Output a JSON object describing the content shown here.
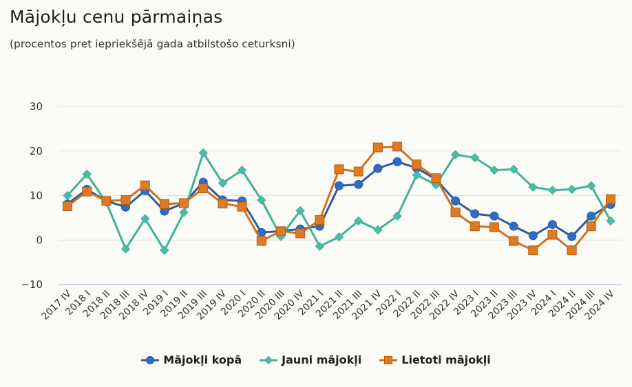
{
  "header": {
    "title": "Mājokļu cenu pārmaiņas",
    "subtitle": "(procentos pret iepriekšējā gada atbilstošo ceturksni)"
  },
  "chart_data": {
    "type": "line",
    "title": "Mājokļu cenu pārmaiņas",
    "subtitle": "(procentos pret iepriekšējā gada atbilstošo ceturksni)",
    "xlabel": "",
    "ylabel": "",
    "ylim": [
      -10,
      30
    ],
    "yticks": [
      30,
      20,
      10,
      0,
      -10
    ],
    "ytick_labels": [
      "30",
      "20",
      "10",
      "0",
      "−10"
    ],
    "grid": true,
    "legend_position": "bottom-center",
    "categories": [
      "2017 IV",
      "2018 I",
      "2018 II",
      "2018 III",
      "2018 IV",
      "2019 I",
      "2019 II",
      "2019 III",
      "2019 IV",
      "2020 I",
      "2020 II",
      "2020 III",
      "2020 IV",
      "2021 I",
      "2021 II",
      "2021 III",
      "2021 IV",
      "2022 I",
      "2022 II",
      "2022 III",
      "2022 IV",
      "2023 I",
      "2023 II",
      "2023 III",
      "2023 IV",
      "2024 I",
      "2024 II",
      "2024 III",
      "2024 IV"
    ],
    "series": [
      {
        "name": "Mājokļi kopā",
        "marker": "circle",
        "color": "#2b5aa6",
        "fill": "#2f6cc4",
        "values": [
          8.1,
          11.4,
          8.8,
          7.4,
          11.1,
          6.5,
          8.3,
          13.0,
          9.0,
          8.8,
          1.7,
          2.0,
          2.5,
          3.1,
          12.2,
          12.5,
          16.1,
          17.6,
          16.2,
          13.6,
          8.8,
          5.9,
          5.4,
          3.1,
          1.0,
          3.5,
          0.8,
          5.4,
          8.0
        ]
      },
      {
        "name": "Jauni mājokļi",
        "marker": "diamond",
        "color": "#3fb19c",
        "fill": "#4cbba6",
        "values": [
          10.0,
          14.8,
          8.5,
          -2.0,
          4.8,
          -2.3,
          6.2,
          19.6,
          12.8,
          15.7,
          9.0,
          0.8,
          6.6,
          -1.4,
          0.7,
          4.3,
          2.3,
          5.4,
          14.6,
          12.4,
          19.2,
          18.5,
          15.7,
          15.9,
          11.9,
          11.2,
          11.4,
          12.2,
          4.3
        ]
      },
      {
        "name": "Lietoti mājokļi",
        "marker": "square",
        "color": "#d2701c",
        "fill": "#df7a22",
        "values": [
          7.6,
          10.9,
          8.8,
          9.0,
          12.3,
          8.1,
          8.3,
          11.6,
          8.2,
          7.5,
          -0.2,
          2.0,
          1.5,
          4.5,
          15.9,
          15.4,
          20.8,
          21.0,
          17.0,
          13.9,
          6.2,
          3.1,
          2.9,
          -0.2,
          -2.3,
          1.2,
          -2.3,
          3.1,
          9.2
        ]
      }
    ]
  },
  "legend": {
    "items": [
      {
        "label": "Mājokļi kopā",
        "icon": "circle-marker-icon"
      },
      {
        "label": "Jauni mājokļi",
        "icon": "diamond-marker-icon"
      },
      {
        "label": "Lietoti mājokļi",
        "icon": "square-marker-icon"
      }
    ]
  }
}
